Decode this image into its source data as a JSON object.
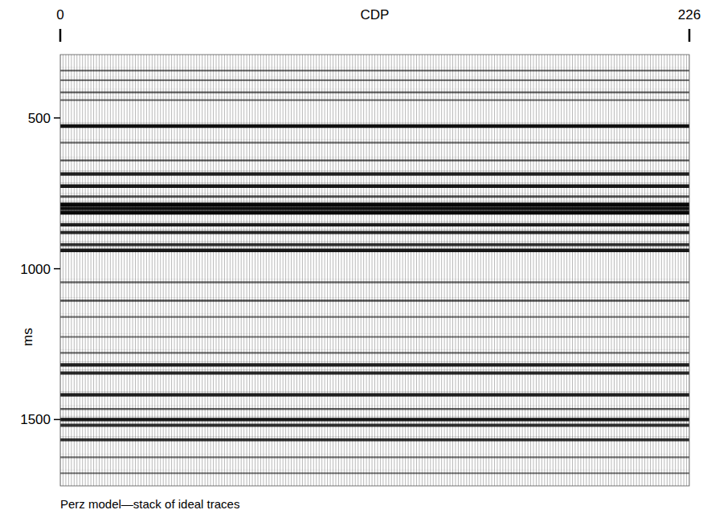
{
  "chart_data": {
    "type": "seismic",
    "title": "Perz model—stack of ideal traces",
    "x_label": "CDP",
    "y_label": "ms",
    "xlim": [
      0,
      226
    ],
    "xticks": [
      0,
      226
    ],
    "ylim": [
      1720,
      290
    ],
    "yticks": [
      500,
      1000,
      1500
    ],
    "times": [
      343,
      375,
      415,
      441,
      527,
      582,
      641,
      686,
      726,
      761,
      787,
      800,
      814,
      854,
      880,
      920,
      939,
      1045,
      1106,
      1160,
      1226,
      1279,
      1319,
      1346,
      1418,
      1465,
      1500,
      1519,
      1567,
      1625,
      1678
    ],
    "amplitudes": [
      0.3,
      0.3,
      0.35,
      0.3,
      0.9,
      0.35,
      0.4,
      0.8,
      0.85,
      0.5,
      0.95,
      0.9,
      0.95,
      0.8,
      0.75,
      0.7,
      0.85,
      0.35,
      0.45,
      0.3,
      0.3,
      0.35,
      0.8,
      0.75,
      0.8,
      0.4,
      0.85,
      0.7,
      0.7,
      0.3,
      0.3
    ]
  }
}
